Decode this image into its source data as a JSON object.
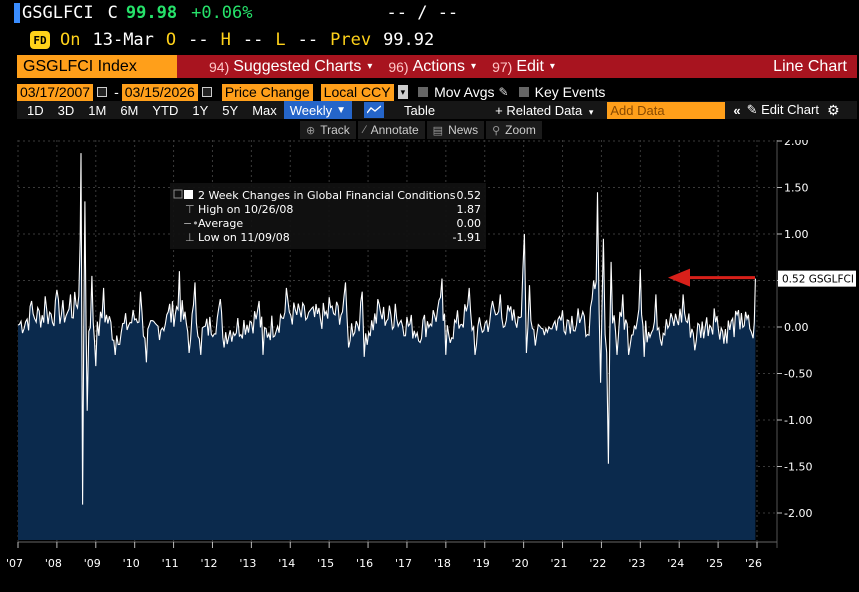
{
  "ticker": {
    "symbol": "GSGLFCI",
    "flag": "C",
    "last": "99.98",
    "change": "+0.06%",
    "bid_ask": "-- / --"
  },
  "session": {
    "icon_text": "FD",
    "on_label": "On",
    "date": "13-Mar",
    "open_label": "O",
    "open_val": "--",
    "high_label": "H",
    "high_val": "--",
    "low_label": "L",
    "low_val": "--",
    "prev_label": "Prev",
    "prev_val": "99.92"
  },
  "menu": {
    "index_name": "GSGLFCI Index",
    "suggested_num": "94)",
    "suggested_label": "Suggested Charts",
    "actions_num": "96)",
    "actions_label": "Actions",
    "edit_num": "97)",
    "edit_label": "Edit",
    "chart_type": "Line Chart"
  },
  "controls": {
    "start_date": "03/17/2007",
    "end_date": "03/15/2026",
    "price_mode": "Price Change",
    "currency": "Local CCY",
    "mov_avgs": "Mov Avgs",
    "key_events": "Key Events",
    "periods": [
      "1D",
      "3D",
      "1M",
      "6M",
      "YTD",
      "1Y",
      "5Y",
      "Max"
    ],
    "frequency": "Weekly",
    "table_label": "Table",
    "related_label": "+ Related Data",
    "add_data_placeholder": "Add Data",
    "edit_chart_label": "Edit Chart"
  },
  "tools": {
    "track": "Track",
    "annotate": "Annotate",
    "news": "News",
    "zoom": "Zoom"
  },
  "colors": {
    "background": "#000000",
    "line": "#ffffff",
    "fill": "#0b2a4d",
    "menu_red": "#a8141f",
    "field_orange": "#ff9f1a",
    "accent_yellow": "#ffd21a",
    "change_green": "#26e26a",
    "highlight_blue": "#2565c9",
    "arrow_red": "#d8201a"
  },
  "chart_data": {
    "type": "line",
    "title": "2 Week Changes in Global Financial Conditions",
    "frequency": "weekly",
    "x_range": [
      2007.2,
      2026.2
    ],
    "ylim": [
      -2.3,
      2.1
    ],
    "yticks": [
      "2.00",
      "1.50",
      "1.00",
      "0.50",
      "0.00",
      "-0.50",
      "-1.00",
      "-1.50",
      "-2.00"
    ],
    "ytick_values": [
      2.0,
      1.5,
      1.0,
      0.5,
      0.0,
      -0.5,
      -1.0,
      -1.5,
      -2.0
    ],
    "xticks": [
      "'07",
      "'08",
      "'09",
      "'10",
      "'11",
      "'12",
      "'13",
      "'14",
      "'15",
      "'16",
      "'17",
      "'18",
      "'19",
      "'20",
      "'21",
      "'22",
      "'23",
      "'24",
      "'25",
      "'26"
    ],
    "xtick_values": [
      2007.0,
      2008.0,
      2009.0,
      2010.0,
      2011.0,
      2012.0,
      2013.0,
      2014.0,
      2015.0,
      2016.0,
      2017.0,
      2018.0,
      2019.0,
      2020.0,
      2021.0,
      2022.0,
      2023.0,
      2024.0,
      2025.0,
      2026.0
    ],
    "legend": {
      "title": "2 Week Changes in Global Financial Conditions",
      "title_value": "0.52",
      "rows": [
        {
          "label": "High on 10/26/08",
          "value": "1.87"
        },
        {
          "label": "Average",
          "value": "0.00"
        },
        {
          "label": "Low on 11/09/08",
          "value": "-1.91"
        }
      ]
    },
    "last_value_label": "0.52 GSGLFCI",
    "last_value": 0.52,
    "annotation": {
      "type": "arrow",
      "points_to": "last value",
      "color": "#d8201a"
    },
    "gridlines": true,
    "key_points": [
      {
        "x": 2007.2,
        "y": 0.02
      },
      {
        "x": 2007.55,
        "y": 0.28
      },
      {
        "x": 2007.9,
        "y": 0.33
      },
      {
        "x": 2008.2,
        "y": 0.4
      },
      {
        "x": 2008.55,
        "y": 0.35
      },
      {
        "x": 2008.8,
        "y": 0.95
      },
      {
        "x": 2008.82,
        "y": 1.87
      },
      {
        "x": 2008.86,
        "y": -1.91
      },
      {
        "x": 2008.92,
        "y": 1.35
      },
      {
        "x": 2008.98,
        "y": -0.9
      },
      {
        "x": 2009.1,
        "y": 0.55
      },
      {
        "x": 2009.2,
        "y": -0.42
      },
      {
        "x": 2009.4,
        "y": 0.42
      },
      {
        "x": 2009.7,
        "y": -0.3
      },
      {
        "x": 2010.35,
        "y": 0.38
      },
      {
        "x": 2010.5,
        "y": -0.38
      },
      {
        "x": 2011.1,
        "y": 0.25
      },
      {
        "x": 2011.35,
        "y": 0.6
      },
      {
        "x": 2011.6,
        "y": -0.28
      },
      {
        "x": 2011.75,
        "y": 0.48
      },
      {
        "x": 2011.9,
        "y": -0.3
      },
      {
        "x": 2012.4,
        "y": 0.3
      },
      {
        "x": 2012.5,
        "y": -0.22
      },
      {
        "x": 2013.4,
        "y": 0.28
      },
      {
        "x": 2013.5,
        "y": -0.3
      },
      {
        "x": 2014.1,
        "y": 0.42
      },
      {
        "x": 2014.75,
        "y": 0.2
      },
      {
        "x": 2015.2,
        "y": 0.32
      },
      {
        "x": 2015.62,
        "y": 0.48
      },
      {
        "x": 2015.7,
        "y": -0.22
      },
      {
        "x": 2016.05,
        "y": 0.38
      },
      {
        "x": 2016.1,
        "y": -0.32
      },
      {
        "x": 2016.45,
        "y": 0.3
      },
      {
        "x": 2016.9,
        "y": 0.25
      },
      {
        "x": 2017.5,
        "y": -0.15
      },
      {
        "x": 2018.1,
        "y": 0.52
      },
      {
        "x": 2018.2,
        "y": -0.3
      },
      {
        "x": 2018.8,
        "y": 0.42
      },
      {
        "x": 2018.95,
        "y": -0.3
      },
      {
        "x": 2019.4,
        "y": 0.28
      },
      {
        "x": 2019.6,
        "y": 0.35
      },
      {
        "x": 2020.1,
        "y": 0.1
      },
      {
        "x": 2020.18,
        "y": 0.62
      },
      {
        "x": 2020.22,
        "y": 1.0
      },
      {
        "x": 2020.27,
        "y": -0.28
      },
      {
        "x": 2020.35,
        "y": 0.45
      },
      {
        "x": 2020.5,
        "y": -0.2
      },
      {
        "x": 2021.2,
        "y": 0.18
      },
      {
        "x": 2021.6,
        "y": 0.2
      },
      {
        "x": 2021.8,
        "y": -0.1
      },
      {
        "x": 2022.0,
        "y": 0.5
      },
      {
        "x": 2022.1,
        "y": 1.45
      },
      {
        "x": 2022.18,
        "y": -0.6
      },
      {
        "x": 2022.25,
        "y": 0.95
      },
      {
        "x": 2022.38,
        "y": -1.47
      },
      {
        "x": 2022.45,
        "y": 0.7
      },
      {
        "x": 2022.6,
        "y": -0.3
      },
      {
        "x": 2022.75,
        "y": 0.35
      },
      {
        "x": 2022.9,
        "y": -0.3
      },
      {
        "x": 2023.2,
        "y": 0.62
      },
      {
        "x": 2023.3,
        "y": -0.32
      },
      {
        "x": 2023.6,
        "y": 0.35
      },
      {
        "x": 2023.75,
        "y": -0.2
      },
      {
        "x": 2024.3,
        "y": 0.35
      },
      {
        "x": 2024.6,
        "y": -0.25
      },
      {
        "x": 2025.1,
        "y": 0.2
      },
      {
        "x": 2025.35,
        "y": -0.18
      },
      {
        "x": 2025.8,
        "y": 0.15
      },
      {
        "x": 2026.05,
        "y": -0.05
      },
      {
        "x": 2026.1,
        "y": -0.12
      },
      {
        "x": 2026.16,
        "y": 0.52
      }
    ]
  }
}
